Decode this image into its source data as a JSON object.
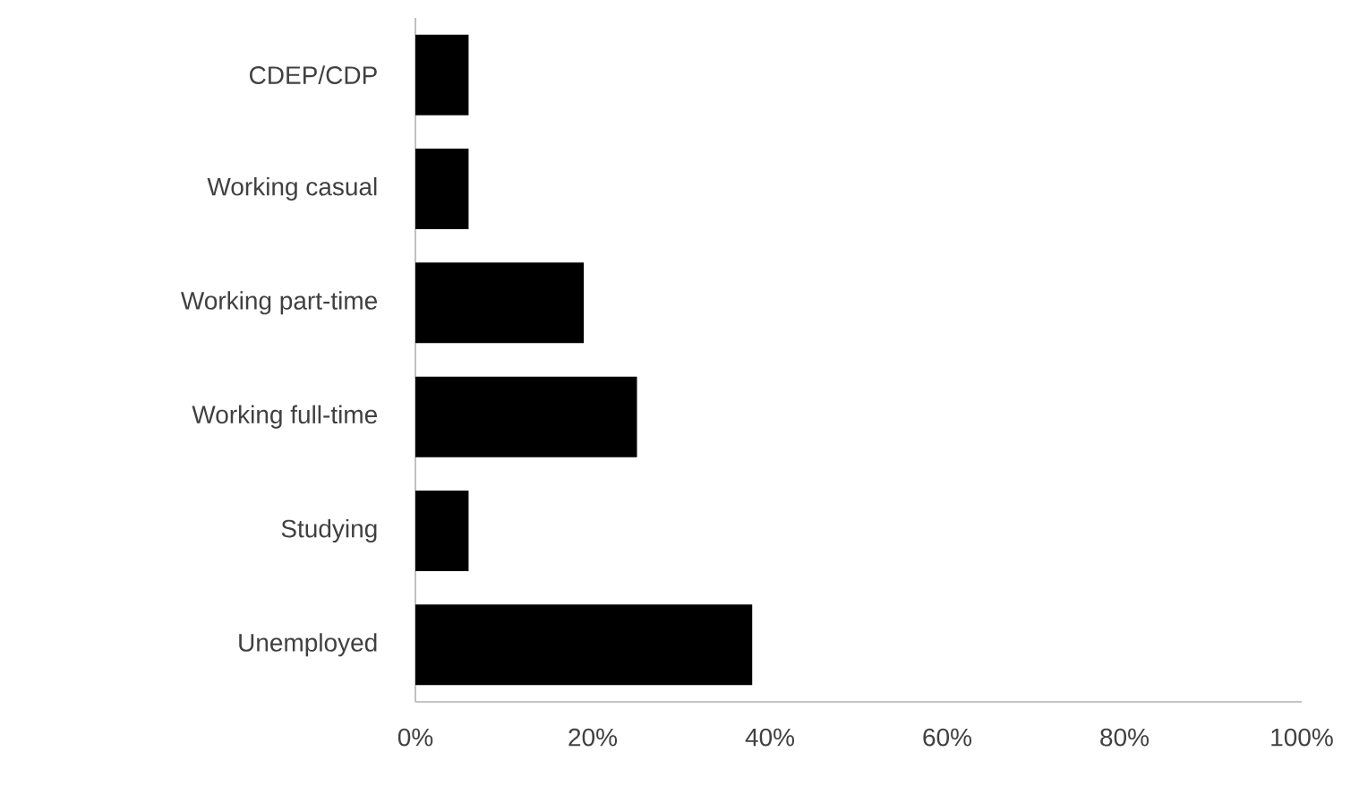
{
  "chart_data": {
    "type": "bar",
    "orientation": "horizontal",
    "categories": [
      "CDEP/CDP",
      "Working casual",
      "Working part-time",
      "Working full-time",
      "Studying",
      "Unemployed"
    ],
    "values": [
      6,
      6,
      19,
      25,
      6,
      38
    ],
    "color": "#000000",
    "xlim": [
      0,
      100
    ],
    "xticks": [
      {
        "value": 0,
        "label": "0%"
      },
      {
        "value": 20,
        "label": "20%"
      },
      {
        "value": 40,
        "label": "40%"
      },
      {
        "value": 60,
        "label": "60%"
      },
      {
        "value": 80,
        "label": "80%"
      },
      {
        "value": 100,
        "label": "100%"
      }
    ]
  }
}
